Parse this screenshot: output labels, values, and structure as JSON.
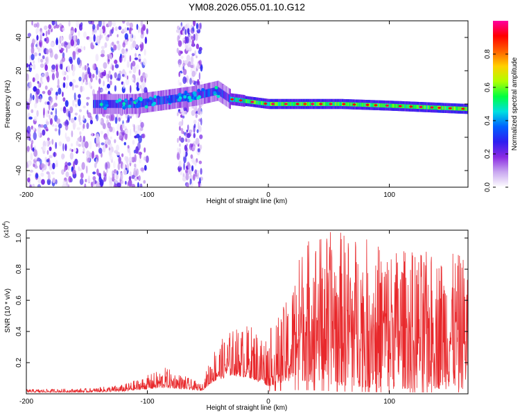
{
  "title": "YM08.2026.055.01.10.G12",
  "chart_data": [
    {
      "type": "heatmap",
      "name": "spectrogram",
      "xlabel": "Height of straight line (km)",
      "ylabel": "Frequency (Hz)",
      "xlim": [
        -200,
        165
      ],
      "ylim": [
        -50,
        50
      ],
      "xticks": [
        -200,
        -100,
        0,
        100
      ],
      "xtick_labels": [
        "-200",
        "-100",
        "0",
        "100"
      ],
      "yticks": [
        40,
        20,
        0,
        -20,
        -40
      ],
      "ytick_labels": [
        "40",
        "20",
        "0",
        "-20",
        "-40"
      ],
      "signal_center_hz": [
        {
          "x": -140,
          "hz": 0
        },
        {
          "x": -110,
          "hz": 0
        },
        {
          "x": -90,
          "hz": 2
        },
        {
          "x": -60,
          "hz": 5
        },
        {
          "x": -42,
          "hz": 8
        },
        {
          "x": -32,
          "hz": 3
        },
        {
          "x": 0,
          "hz": 0
        },
        {
          "x": 60,
          "hz": 0
        },
        {
          "x": 100,
          "hz": -1
        },
        {
          "x": 165,
          "hz": -3
        }
      ],
      "noise_regions_km": [
        [
          -200,
          -100
        ],
        [
          -75,
          -55
        ]
      ],
      "colorbar": {
        "label": "Normalized spectral amplitude",
        "range": [
          0.0,
          1.0
        ],
        "ticks": [
          0.0,
          0.2,
          0.4,
          0.6,
          0.8
        ],
        "tick_labels": [
          "0.0",
          "0.2",
          "0.4",
          "0.6",
          "0.8"
        ],
        "colors": [
          "#ffffff",
          "#c9a8f0",
          "#8a2be2",
          "#2e1ef0",
          "#0060ff",
          "#00e0e0",
          "#00ff40",
          "#b0ff00",
          "#ffd000",
          "#ff6000",
          "#ff0000",
          "#ff00a0"
        ]
      }
    },
    {
      "type": "line",
      "name": "snr",
      "xlabel": "Height of straight line (km)",
      "ylabel": "SNR (10 * v/v)",
      "y_multiplier": "(x10",
      "y_multiplier_exp": "4",
      "y_multiplier_close": ")",
      "xlim": [
        -200,
        165
      ],
      "ylim": [
        0,
        1.05
      ],
      "xticks": [
        -200,
        -100,
        0,
        100
      ],
      "xtick_labels": [
        "-200",
        "-100",
        "0",
        "100"
      ],
      "yticks": [
        1.0,
        0.8,
        0.6,
        0.4,
        0.2
      ],
      "ytick_labels": [
        "1.0",
        "0.8",
        "0.6",
        "0.4",
        "0.2"
      ],
      "color": "#e8282b",
      "envelope": [
        {
          "x": -200,
          "base": 0.01,
          "peak": 0.03
        },
        {
          "x": -150,
          "base": 0.01,
          "peak": 0.035
        },
        {
          "x": -120,
          "base": 0.015,
          "peak": 0.06
        },
        {
          "x": -100,
          "base": 0.03,
          "peak": 0.12
        },
        {
          "x": -85,
          "base": 0.04,
          "peak": 0.17
        },
        {
          "x": -70,
          "base": 0.03,
          "peak": 0.12
        },
        {
          "x": -55,
          "base": 0.02,
          "peak": 0.06
        },
        {
          "x": -45,
          "base": 0.08,
          "peak": 0.3
        },
        {
          "x": -30,
          "base": 0.12,
          "peak": 0.42
        },
        {
          "x": -15,
          "base": 0.1,
          "peak": 0.45
        },
        {
          "x": 0,
          "base": 0.05,
          "peak": 0.4
        },
        {
          "x": 15,
          "base": 0.08,
          "peak": 0.6
        },
        {
          "x": 30,
          "base": 0.08,
          "peak": 1.02
        },
        {
          "x": 60,
          "base": 0.05,
          "peak": 1.05
        },
        {
          "x": 100,
          "base": 0.03,
          "peak": 0.95
        },
        {
          "x": 140,
          "base": 0.03,
          "peak": 0.9
        },
        {
          "x": 165,
          "base": 0.03,
          "peak": 0.9
        }
      ]
    }
  ]
}
